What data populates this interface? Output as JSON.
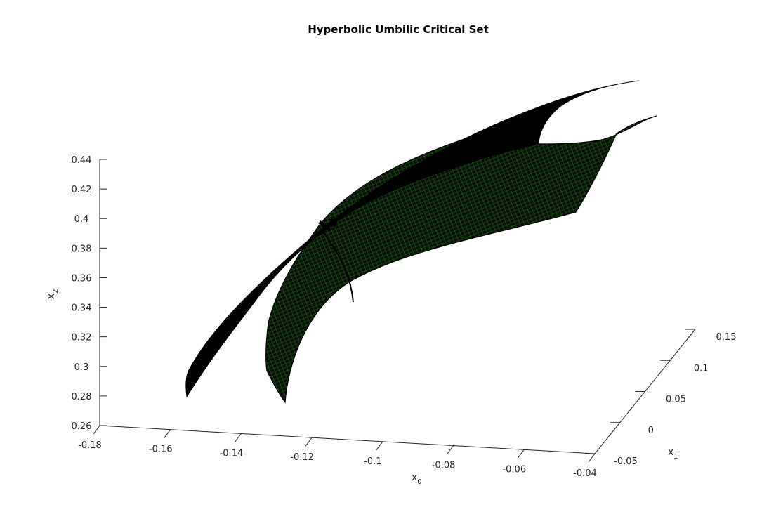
{
  "chart_data": {
    "type": "surface3d",
    "title": "Hyperbolic Umbilic Critical Set",
    "xlabel": {
      "base": "x",
      "sub": "0"
    },
    "ylabel": {
      "base": "x",
      "sub": "1"
    },
    "zlabel": {
      "base": "x",
      "sub": "2"
    },
    "xlim": [
      -0.18,
      -0.04
    ],
    "ylim": [
      -0.05,
      0.15
    ],
    "zlim": [
      0.26,
      0.44
    ],
    "x_ticks": [
      "-0.18",
      "-0.16",
      "-0.14",
      "-0.12",
      "-0.1",
      "-0.08",
      "-0.06",
      "-0.04"
    ],
    "y_ticks": [
      "-0.05",
      "0",
      "0.05",
      "0.1",
      "0.15"
    ],
    "z_ticks": [
      "0.26",
      "0.28",
      "0.3",
      "0.32",
      "0.34",
      "0.36",
      "0.38",
      "0.4",
      "0.42",
      "0.44"
    ],
    "grid": false,
    "colors": {
      "surface_back": "#000000",
      "surface_front": "#0b1a08",
      "mesh": "#2e8b1f",
      "axis": "#262626"
    },
    "series": [
      {
        "sheet": "upper",
        "points": [
          {
            "x": -0.152,
            "y": -0.01,
            "z": 0.282
          },
          {
            "x": -0.115,
            "y": 0.02,
            "z": 0.39
          },
          {
            "x": -0.07,
            "y": 0.09,
            "z": 0.43
          }
        ]
      },
      {
        "sheet": "lower",
        "points": [
          {
            "x": -0.128,
            "y": -0.02,
            "z": 0.28
          },
          {
            "x": -0.11,
            "y": 0.0,
            "z": 0.34
          },
          {
            "x": -0.05,
            "y": 0.11,
            "z": 0.425
          }
        ]
      }
    ]
  }
}
